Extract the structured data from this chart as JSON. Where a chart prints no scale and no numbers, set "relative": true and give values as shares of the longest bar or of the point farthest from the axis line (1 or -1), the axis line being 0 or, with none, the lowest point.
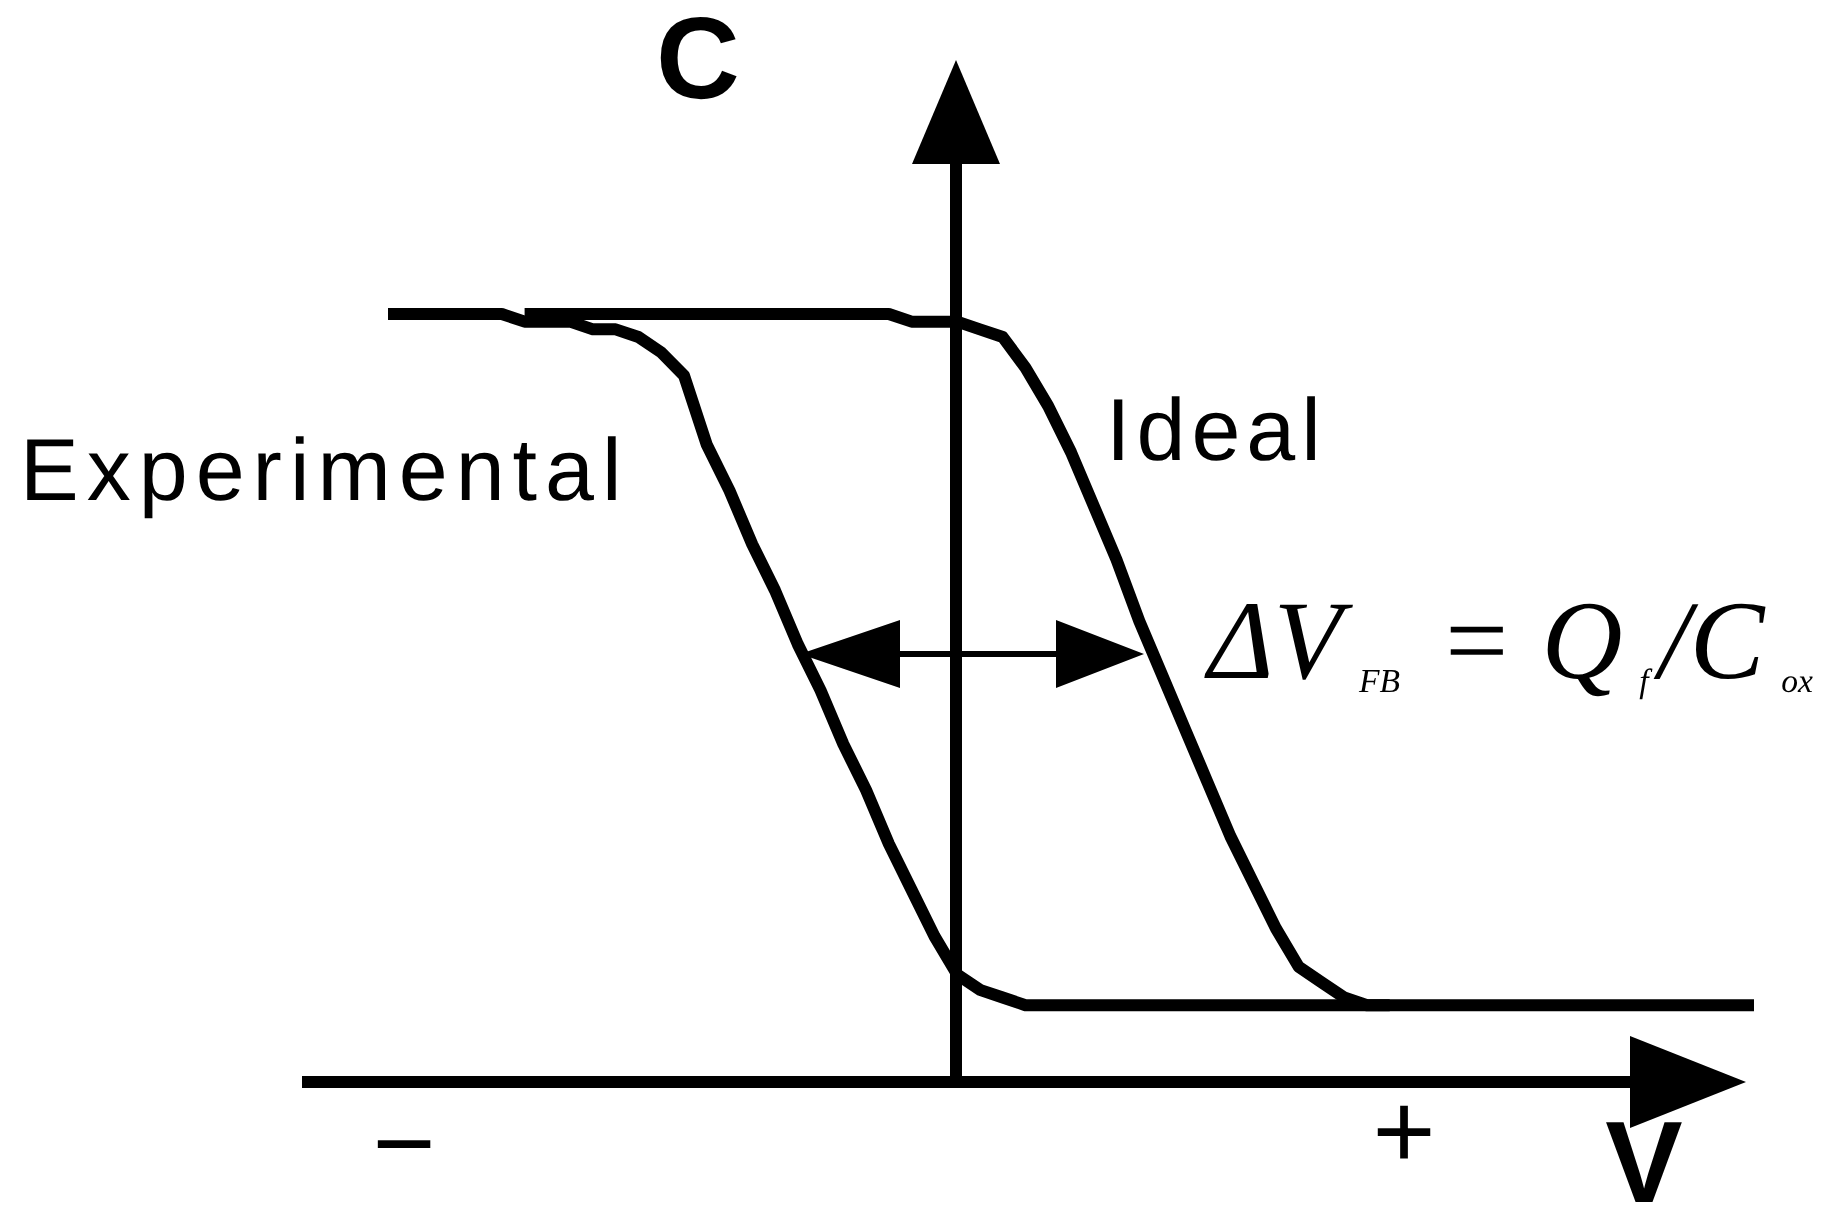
{
  "chart_data": {
    "type": "line",
    "relative": true,
    "xlabel": "V",
    "ylabel": "C",
    "categories": [
      null,
      null,
      null,
      null,
      null,
      null,
      null,
      null,
      null,
      null,
      null,
      null,
      null,
      null,
      null,
      null,
      null,
      null,
      null,
      null,
      null,
      null,
      null,
      null,
      null,
      null,
      null,
      null,
      null,
      null,
      null,
      null,
      null,
      null,
      null,
      null,
      null,
      null,
      null,
      null,
      null,
      null,
      null,
      null,
      null,
      null,
      null,
      null,
      null,
      null,
      null,
      null,
      null,
      null,
      null,
      null,
      null,
      null,
      null,
      null,
      null
    ],
    "series": [
      {
        "name": "Experimental",
        "color": "#000000",
        "values": [
          1.0,
          1.0,
          1.0,
          1.0,
          1.0,
          1.0,
          0.99,
          0.99,
          0.99,
          0.98,
          0.98,
          0.97,
          0.95,
          0.92,
          0.83,
          0.77,
          0.7,
          0.64,
          0.57,
          0.51,
          0.44,
          0.38,
          0.31,
          0.25,
          0.19,
          0.14,
          0.12,
          0.11,
          0.1,
          0.1,
          0.1,
          0.1,
          0.1,
          0.1,
          0.1,
          0.1,
          0.1,
          0.1,
          0.1,
          0.1,
          0.1,
          0.1,
          0.1,
          0.1,
          0.1,
          null,
          null,
          null,
          null,
          null,
          null,
          null,
          null,
          null,
          null,
          null,
          null,
          null,
          null,
          null,
          null
        ]
      },
      {
        "name": "Ideal",
        "color": "#000000",
        "values": [
          null,
          null,
          null,
          null,
          null,
          null,
          1.0,
          1.0,
          1.0,
          1.0,
          1.0,
          1.0,
          1.0,
          1.0,
          1.0,
          1.0,
          1.0,
          1.0,
          1.0,
          1.0,
          1.0,
          1.0,
          1.0,
          0.99,
          0.99,
          0.99,
          0.98,
          0.97,
          0.93,
          0.88,
          0.82,
          0.75,
          0.68,
          0.6,
          0.53,
          0.46,
          0.39,
          0.32,
          0.26,
          0.2,
          0.15,
          0.13,
          0.11,
          0.1,
          0.1,
          0.1,
          0.1,
          0.1,
          0.1,
          0.1,
          0.1,
          0.1,
          0.1,
          0.1,
          0.1,
          0.1,
          0.1,
          0.1,
          0.1,
          0.1,
          0.1
        ]
      }
    ],
    "annotations": [
      "ΔV$_{FB}$ = Q$_{f}$/C$_{ox}$",
      "−",
      "+"
    ],
    "legend": false,
    "marker": "none",
    "line_style": "solid"
  }
}
